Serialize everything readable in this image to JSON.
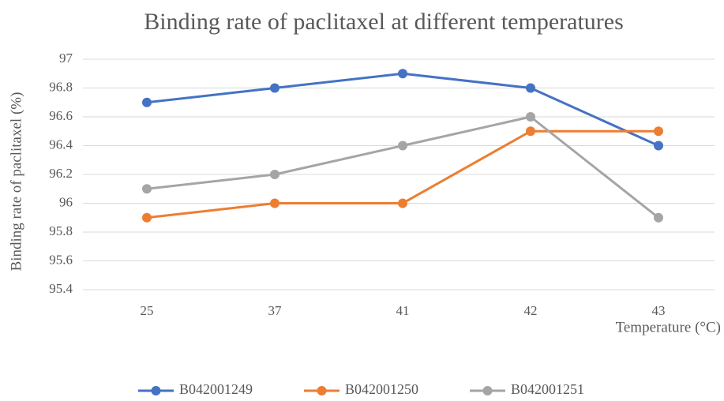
{
  "chart_data": {
    "type": "line",
    "title": "Binding rate of paclitaxel at different temperatures",
    "x_label": "Temperature (°C)",
    "y_label": "Binding rate of paclitaxel (%)",
    "categories": [
      "25",
      "37",
      "41",
      "42",
      "43"
    ],
    "series": [
      {
        "name": "B042001249",
        "color": "#4472c4",
        "values": [
          96.7,
          96.8,
          96.9,
          96.8,
          96.4
        ]
      },
      {
        "name": "B042001250",
        "color": "#ed7d31",
        "values": [
          95.9,
          96.0,
          96.0,
          96.5,
          96.5
        ]
      },
      {
        "name": "B042001251",
        "color": "#a5a5a5",
        "values": [
          96.1,
          96.2,
          96.4,
          96.6,
          95.9
        ]
      }
    ],
    "ylim": [
      95.4,
      97
    ],
    "yticks": [
      95.4,
      95.6,
      95.8,
      96,
      96.2,
      96.4,
      96.6,
      96.8,
      97
    ],
    "grid": true,
    "legend": "bottom"
  }
}
